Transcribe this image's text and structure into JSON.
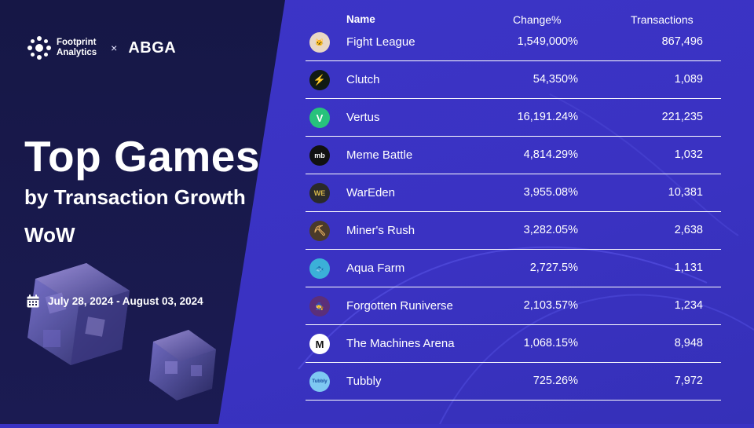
{
  "brand": {
    "footprint_line1": "Footprint",
    "footprint_line2": "Analytics",
    "times": "×",
    "partner": "ABGA"
  },
  "hero": {
    "title": "Top Games",
    "subtitle": "by Transaction Growth",
    "period_label": "WoW",
    "date_range": "July 28, 2024 - August 03, 2024"
  },
  "table": {
    "headers": {
      "name": "Name",
      "change": "Change%",
      "transactions": "Transactions"
    },
    "rows": [
      {
        "name": "Fight League",
        "change": "1,549,000%",
        "transactions": "867,496",
        "icon": "fight-league-icon",
        "icon_bg": "#e9d7c5",
        "icon_fg": "#5a3b8a",
        "glyph": "🐱"
      },
      {
        "name": "Clutch",
        "change": "54,350%",
        "transactions": "1,089",
        "icon": "clutch-icon",
        "icon_bg": "#101a14",
        "icon_fg": "#23e07a",
        "glyph": "⚡"
      },
      {
        "name": "Vertus",
        "change": "16,191.24%",
        "transactions": "221,235",
        "icon": "vertus-icon",
        "icon_bg": "#27c27c",
        "icon_fg": "#ffffff",
        "glyph": "V"
      },
      {
        "name": "Meme Battle",
        "change": "4,814.29%",
        "transactions": "1,032",
        "icon": "meme-battle-icon",
        "icon_bg": "#111111",
        "icon_fg": "#ffffff",
        "glyph": "mb"
      },
      {
        "name": "WarEden",
        "change": "3,955.08%",
        "transactions": "10,381",
        "icon": "wareden-icon",
        "icon_bg": "#2a2a2a",
        "icon_fg": "#d8b84a",
        "glyph": "WE"
      },
      {
        "name": "Miner's Rush",
        "change": "3,282.05%",
        "transactions": "2,638",
        "icon": "miners-rush-icon",
        "icon_bg": "#4a3a2a",
        "icon_fg": "#e8b060",
        "glyph": "⛏"
      },
      {
        "name": "Aqua Farm",
        "change": "2,727.5%",
        "transactions": "1,131",
        "icon": "aqua-farm-icon",
        "icon_bg": "#3bb0d8",
        "icon_fg": "#f2c26b",
        "glyph": "🐟"
      },
      {
        "name": "Forgotten Runiverse",
        "change": "2,103.57%",
        "transactions": "1,234",
        "icon": "forgotten-runiverse-icon",
        "icon_bg": "#5b2f7a",
        "icon_fg": "#e0a0ff",
        "glyph": "🧙"
      },
      {
        "name": "The Machines Arena",
        "change": "1,068.15%",
        "transactions": "8,948",
        "icon": "machines-arena-icon",
        "icon_bg": "#ffffff",
        "icon_fg": "#111111",
        "glyph": "M"
      },
      {
        "name": "Tubbly",
        "change": "725.26%",
        "transactions": "7,972",
        "icon": "tubbly-icon",
        "icon_bg": "#7ec8f2",
        "icon_fg": "#1a4fa0",
        "glyph": "Tubbly"
      }
    ]
  },
  "colors": {
    "left_panel": "#161746",
    "right_panel": "#3a33c4",
    "text": "#ffffff"
  }
}
